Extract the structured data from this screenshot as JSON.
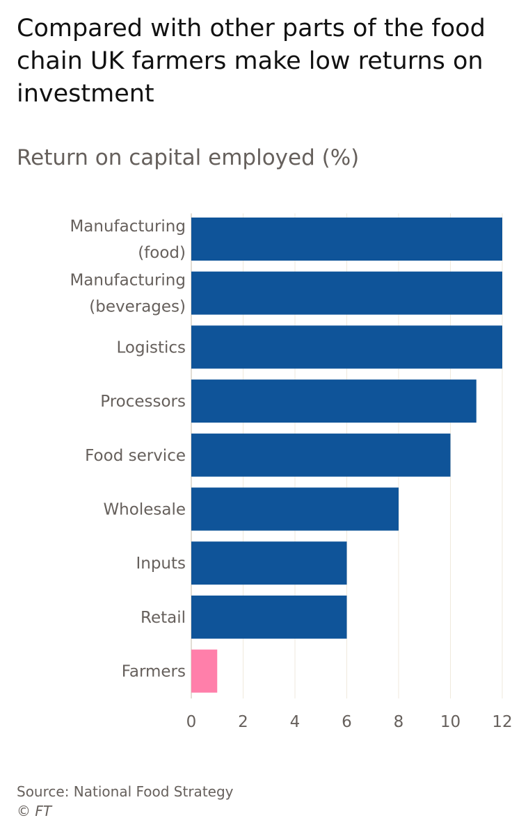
{
  "chart_data": {
    "type": "bar",
    "orientation": "horizontal",
    "title": "Compared with other parts of the food chain UK farmers make low returns on investment",
    "subtitle": "Return on capital employed (%)",
    "categories": [
      [
        "Manufacturing",
        "(food)"
      ],
      [
        "Manufacturing",
        "(beverages)"
      ],
      [
        "Logistics"
      ],
      [
        "Processors"
      ],
      [
        "Food service"
      ],
      [
        "Wholesale"
      ],
      [
        "Inputs"
      ],
      [
        "Retail"
      ],
      [
        "Farmers"
      ]
    ],
    "values": [
      12,
      12,
      12,
      11,
      10,
      8,
      6,
      6,
      1
    ],
    "bar_colors": [
      "#0f5499",
      "#0f5499",
      "#0f5499",
      "#0f5499",
      "#0f5499",
      "#0f5499",
      "#0f5499",
      "#0f5499",
      "#ff7faa"
    ],
    "xlim": [
      0,
      12
    ],
    "xticks": [
      "0",
      "2",
      "4",
      "6",
      "8",
      "10",
      "12"
    ],
    "grid": "vertical"
  },
  "footer": {
    "source": "Source: National Food Strategy",
    "credit": "© FT"
  }
}
